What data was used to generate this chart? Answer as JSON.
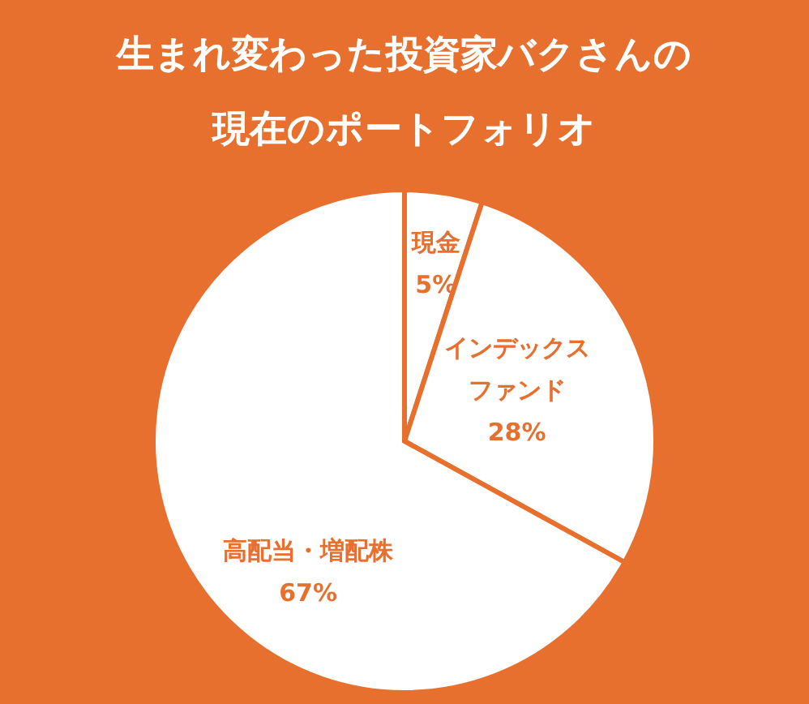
{
  "chart_data": {
    "type": "pie",
    "title": [
      "生まれ変わった投資家バクさんの",
      "現在のポートフォリオ"
    ],
    "categories": [
      "現金",
      "インデックスファンド",
      "高配当・増配株"
    ],
    "values": [
      5,
      28,
      67
    ],
    "colors": [
      "#ffffff",
      "#ffffff",
      "#ffffff"
    ],
    "value_labels": [
      "5%",
      "28%",
      "67%"
    ],
    "legend": false
  }
}
